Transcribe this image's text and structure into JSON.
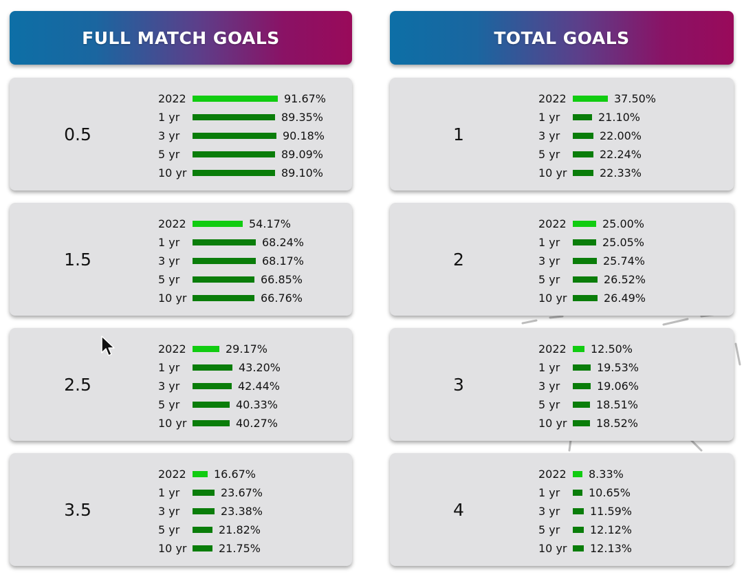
{
  "left_panel": {
    "title": "FULL MATCH GOALS",
    "cards": [
      {
        "label": "0.5",
        "rows": [
          {
            "period": "2022",
            "value": 91.67,
            "text": "91.67%"
          },
          {
            "period": "1 yr",
            "value": 89.35,
            "text": "89.35%"
          },
          {
            "period": "3 yr",
            "value": 90.18,
            "text": "90.18%"
          },
          {
            "period": "5 yr",
            "value": 89.09,
            "text": "89.09%"
          },
          {
            "period": "10 yr",
            "value": 89.1,
            "text": "89.10%"
          }
        ]
      },
      {
        "label": "1.5",
        "rows": [
          {
            "period": "2022",
            "value": 54.17,
            "text": "54.17%"
          },
          {
            "period": "1 yr",
            "value": 68.24,
            "text": "68.24%"
          },
          {
            "period": "3 yr",
            "value": 68.17,
            "text": "68.17%"
          },
          {
            "period": "5 yr",
            "value": 66.85,
            "text": "66.85%"
          },
          {
            "period": "10 yr",
            "value": 66.76,
            "text": "66.76%"
          }
        ]
      },
      {
        "label": "2.5",
        "rows": [
          {
            "period": "2022",
            "value": 29.17,
            "text": "29.17%"
          },
          {
            "period": "1 yr",
            "value": 43.2,
            "text": "43.20%"
          },
          {
            "period": "3 yr",
            "value": 42.44,
            "text": "42.44%"
          },
          {
            "period": "5 yr",
            "value": 40.33,
            "text": "40.33%"
          },
          {
            "period": "10 yr",
            "value": 40.27,
            "text": "40.27%"
          }
        ]
      },
      {
        "label": "3.5",
        "rows": [
          {
            "period": "2022",
            "value": 16.67,
            "text": "16.67%"
          },
          {
            "period": "1 yr",
            "value": 23.67,
            "text": "23.67%"
          },
          {
            "period": "3 yr",
            "value": 23.38,
            "text": "23.38%"
          },
          {
            "period": "5 yr",
            "value": 21.82,
            "text": "21.82%"
          },
          {
            "period": "10 yr",
            "value": 21.75,
            "text": "21.75%"
          }
        ]
      }
    ]
  },
  "right_panel": {
    "title": "TOTAL GOALS",
    "cards": [
      {
        "label": "1",
        "rows": [
          {
            "period": "2022",
            "value": 37.5,
            "text": "37.50%"
          },
          {
            "period": "1 yr",
            "value": 21.1,
            "text": "21.10%"
          },
          {
            "period": "3 yr",
            "value": 22.0,
            "text": "22.00%"
          },
          {
            "period": "5 yr",
            "value": 22.24,
            "text": "22.24%"
          },
          {
            "period": "10 yr",
            "value": 22.33,
            "text": "22.33%"
          }
        ]
      },
      {
        "label": "2",
        "rows": [
          {
            "period": "2022",
            "value": 25.0,
            "text": "25.00%"
          },
          {
            "period": "1 yr",
            "value": 25.05,
            "text": "25.05%"
          },
          {
            "period": "3 yr",
            "value": 25.74,
            "text": "25.74%"
          },
          {
            "period": "5 yr",
            "value": 26.52,
            "text": "26.52%"
          },
          {
            "period": "10 yr",
            "value": 26.49,
            "text": "26.49%"
          }
        ]
      },
      {
        "label": "3",
        "rows": [
          {
            "period": "2022",
            "value": 12.5,
            "text": "12.50%"
          },
          {
            "period": "1 yr",
            "value": 19.53,
            "text": "19.53%"
          },
          {
            "period": "3 yr",
            "value": 19.06,
            "text": "19.06%"
          },
          {
            "period": "5 yr",
            "value": 18.51,
            "text": "18.51%"
          },
          {
            "period": "10 yr",
            "value": 18.52,
            "text": "18.52%"
          }
        ]
      },
      {
        "label": "4",
        "rows": [
          {
            "period": "2022",
            "value": 8.33,
            "text": "8.33%"
          },
          {
            "period": "1 yr",
            "value": 10.65,
            "text": "10.65%"
          },
          {
            "period": "3 yr",
            "value": 11.59,
            "text": "11.59%"
          },
          {
            "period": "5 yr",
            "value": 12.12,
            "text": "12.12%"
          },
          {
            "period": "10 yr",
            "value": 12.13,
            "text": "12.13%"
          }
        ]
      }
    ]
  },
  "colors": {
    "current_bar": "#11cc11",
    "historic_bar": "#0a7d0a",
    "header_gradient_start": "#0d6fa6",
    "header_gradient_end": "#990a5a",
    "card_background": "#e1e1e3"
  },
  "icons": {
    "cursor": "mouse-pointer-icon"
  }
}
